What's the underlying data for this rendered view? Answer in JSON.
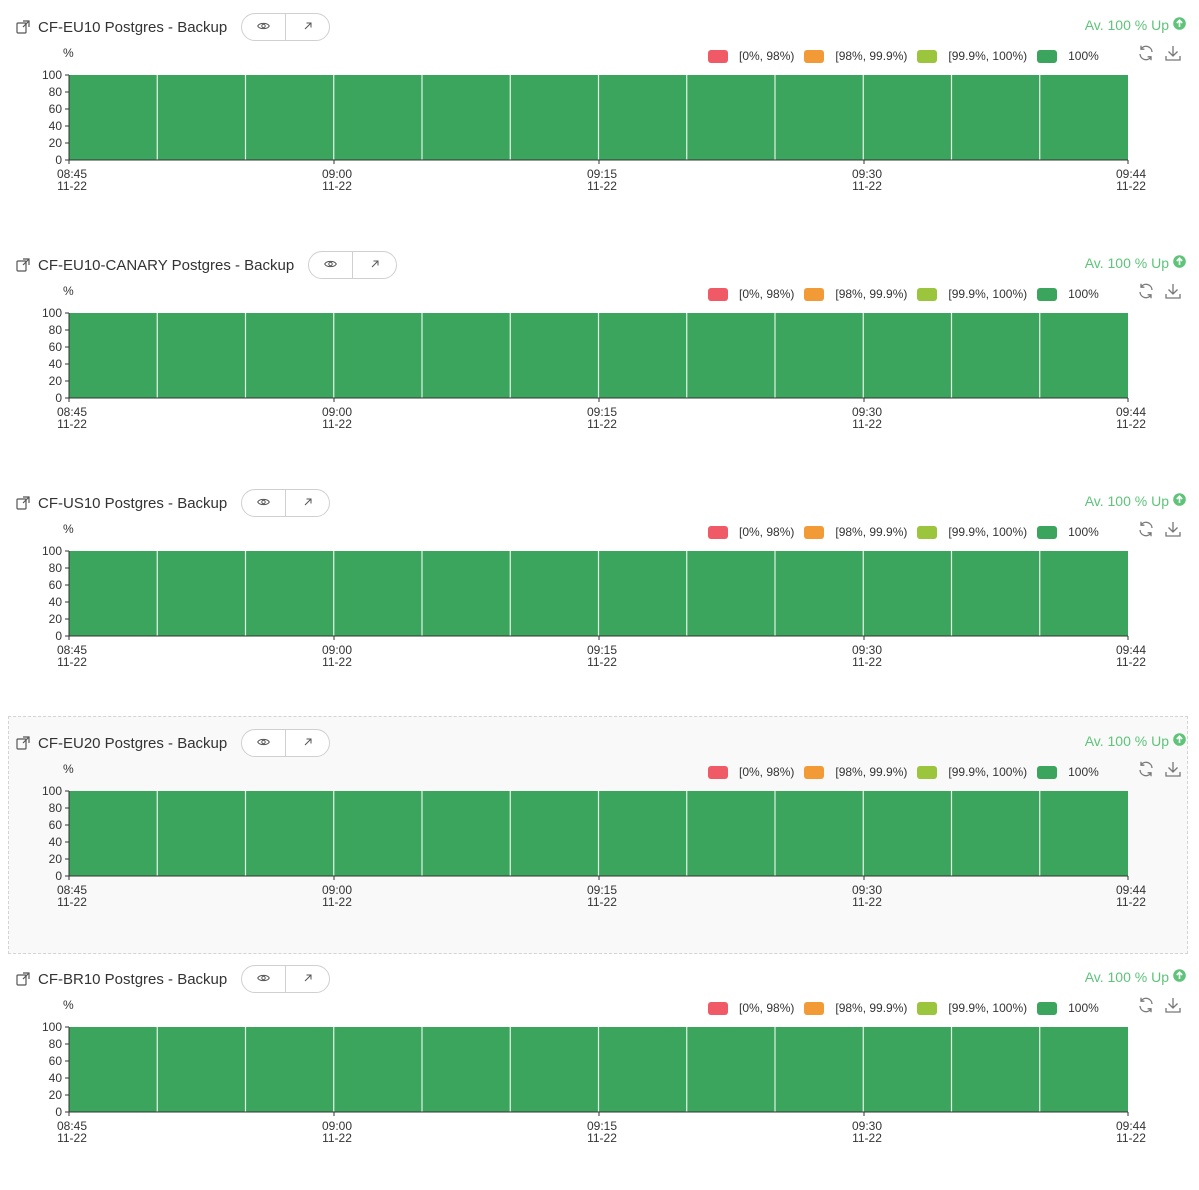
{
  "icons": {
    "title": "external-link-icon",
    "view": "eye-icon",
    "open": "arrow-up-right-icon",
    "status": "arrow-up-circle-icon",
    "refresh": "refresh-icon",
    "download": "download-icon"
  },
  "legend": [
    {
      "label": "[0%, 98%)",
      "color": "#f05a67"
    },
    {
      "label": "[98%, 99.9%)",
      "color": "#f29a36"
    },
    {
      "label": "[99.9%, 100%)",
      "color": "#9cc53e"
    },
    {
      "label": "100%",
      "color": "#3ba55d"
    }
  ],
  "panels": [
    {
      "title": "CF-EU10 Postgres - Backup",
      "availability": "Av. 100 % Up"
    },
    {
      "title": "CF-EU10-CANARY Postgres - Backup",
      "availability": "Av. 100 % Up"
    },
    {
      "title": "CF-US10 Postgres - Backup",
      "availability": "Av. 100 % Up"
    },
    {
      "title": "CF-EU20 Postgres - Backup",
      "availability": "Av. 100 % Up",
      "highlighted": true
    },
    {
      "title": "CF-BR10 Postgres - Backup",
      "availability": "Av. 100 % Up"
    }
  ],
  "chart_data": [
    {
      "type": "bar",
      "title": "CF-EU10 Postgres - Backup",
      "ylabel": "%",
      "ylim": [
        0,
        100
      ],
      "yticks": [
        0,
        20,
        40,
        60,
        80,
        100
      ],
      "xticks": [
        [
          "08:45",
          "11-22"
        ],
        [
          "09:00",
          "11-22"
        ],
        [
          "09:15",
          "11-22"
        ],
        [
          "09:30",
          "11-22"
        ],
        [
          "09:44",
          "11-22"
        ]
      ],
      "values": [
        100,
        100,
        100,
        100,
        100,
        100,
        100,
        100,
        100,
        100,
        100,
        100
      ],
      "bar_color": "#3ba55d"
    },
    {
      "type": "bar",
      "title": "CF-EU10-CANARY Postgres - Backup",
      "ylabel": "%",
      "ylim": [
        0,
        100
      ],
      "yticks": [
        0,
        20,
        40,
        60,
        80,
        100
      ],
      "xticks": [
        [
          "08:45",
          "11-22"
        ],
        [
          "09:00",
          "11-22"
        ],
        [
          "09:15",
          "11-22"
        ],
        [
          "09:30",
          "11-22"
        ],
        [
          "09:44",
          "11-22"
        ]
      ],
      "values": [
        100,
        100,
        100,
        100,
        100,
        100,
        100,
        100,
        100,
        100,
        100,
        100
      ],
      "bar_color": "#3ba55d"
    },
    {
      "type": "bar",
      "title": "CF-US10 Postgres - Backup",
      "ylabel": "%",
      "ylim": [
        0,
        100
      ],
      "yticks": [
        0,
        20,
        40,
        60,
        80,
        100
      ],
      "xticks": [
        [
          "08:45",
          "11-22"
        ],
        [
          "09:00",
          "11-22"
        ],
        [
          "09:15",
          "11-22"
        ],
        [
          "09:30",
          "11-22"
        ],
        [
          "09:44",
          "11-22"
        ]
      ],
      "values": [
        100,
        100,
        100,
        100,
        100,
        100,
        100,
        100,
        100,
        100,
        100,
        100
      ],
      "bar_color": "#3ba55d"
    },
    {
      "type": "bar",
      "title": "CF-EU20 Postgres - Backup",
      "ylabel": "%",
      "ylim": [
        0,
        100
      ],
      "yticks": [
        0,
        20,
        40,
        60,
        80,
        100
      ],
      "xticks": [
        [
          "08:45",
          "11-22"
        ],
        [
          "09:00",
          "11-22"
        ],
        [
          "09:15",
          "11-22"
        ],
        [
          "09:30",
          "11-22"
        ],
        [
          "09:44",
          "11-22"
        ]
      ],
      "values": [
        100,
        100,
        100,
        100,
        100,
        100,
        100,
        100,
        100,
        100,
        100,
        100
      ],
      "bar_color": "#3ba55d"
    },
    {
      "type": "bar",
      "title": "CF-BR10 Postgres - Backup",
      "ylabel": "%",
      "ylim": [
        0,
        100
      ],
      "yticks": [
        0,
        20,
        40,
        60,
        80,
        100
      ],
      "xticks": [
        [
          "08:45",
          "11-22"
        ],
        [
          "09:00",
          "11-22"
        ],
        [
          "09:15",
          "11-22"
        ],
        [
          "09:30",
          "11-22"
        ],
        [
          "09:44",
          "11-22"
        ]
      ],
      "values": [
        100,
        100,
        100,
        100,
        100,
        100,
        100,
        100,
        100,
        100,
        100,
        100
      ],
      "bar_color": "#3ba55d"
    }
  ]
}
